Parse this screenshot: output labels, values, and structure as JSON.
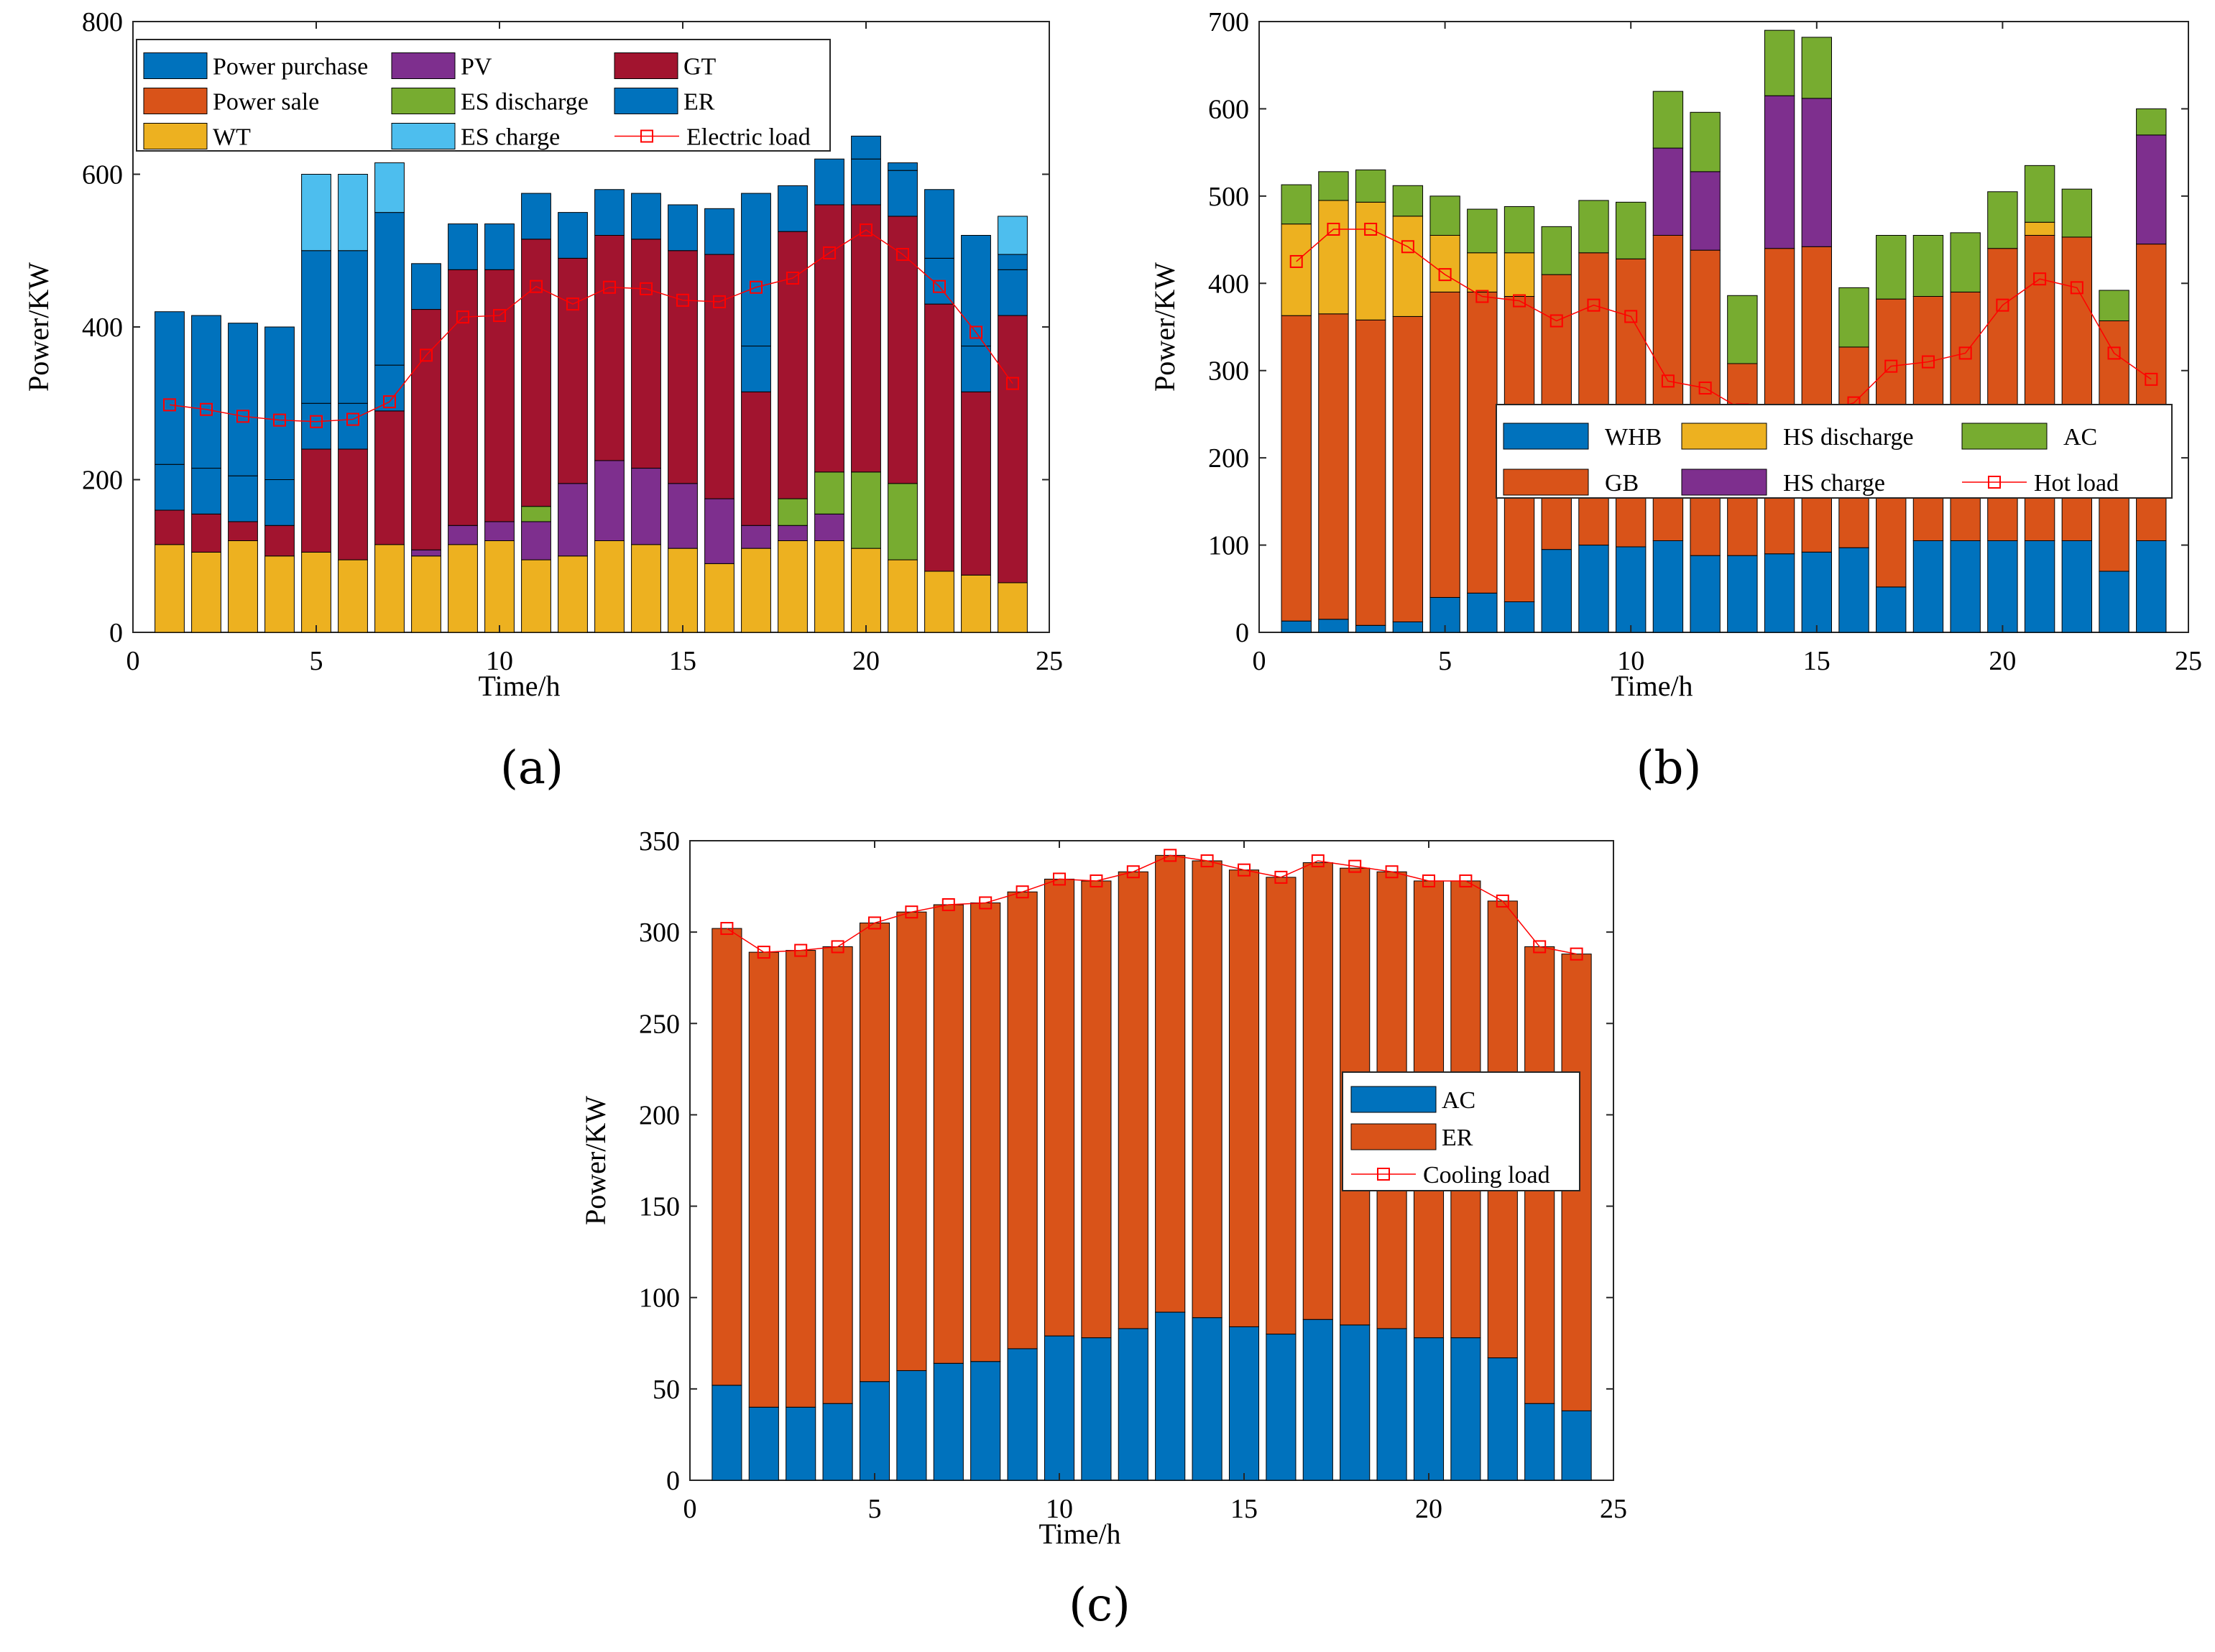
{
  "colors": {
    "blue": "#0072BD",
    "orange": "#D95319",
    "yellow": "#EDB120",
    "purple": "#7E2F8E",
    "green": "#77AC30",
    "lightblue": "#4DBEEE",
    "crimson": "#A2142F",
    "red": "#FF0000"
  },
  "chart_data": [
    {
      "type": "bar",
      "panel_label": "(a)",
      "xlabel": "Time/h",
      "ylabel": "Power/KW",
      "xlim": [
        0,
        25
      ],
      "ylim": [
        0,
        800
      ],
      "xticks": [
        0,
        5,
        10,
        15,
        20,
        25
      ],
      "yticks": [
        0,
        200,
        400,
        600,
        800
      ],
      "legend_position": "top",
      "x": [
        1,
        2,
        3,
        4,
        5,
        6,
        7,
        8,
        9,
        10,
        11,
        12,
        13,
        14,
        15,
        16,
        17,
        18,
        19,
        20,
        21,
        22,
        23,
        24
      ],
      "series": [
        {
          "name": "WT",
          "color": "yellow",
          "values": [
            115,
            105,
            120,
            100,
            105,
            95,
            115,
            100,
            115,
            120,
            95,
            100,
            120,
            115,
            110,
            90,
            110,
            120,
            120,
            110,
            95,
            80,
            75,
            65
          ]
        },
        {
          "name": "PV",
          "color": "purple",
          "values": [
            0,
            0,
            0,
            0,
            0,
            0,
            0,
            8,
            25,
            25,
            50,
            95,
            105,
            100,
            85,
            85,
            30,
            20,
            35,
            0,
            0,
            0,
            0,
            0
          ]
        },
        {
          "name": "ES discharge",
          "color": "green",
          "values": [
            0,
            0,
            0,
            0,
            0,
            0,
            0,
            0,
            0,
            0,
            20,
            0,
            0,
            0,
            0,
            0,
            0,
            35,
            55,
            100,
            100,
            0,
            0,
            0
          ]
        },
        {
          "name": "GT",
          "color": "crimson",
          "values": [
            45,
            50,
            25,
            40,
            135,
            145,
            175,
            315,
            335,
            330,
            350,
            295,
            295,
            300,
            305,
            320,
            175,
            350,
            350,
            350,
            350,
            350,
            240,
            350
          ]
        },
        {
          "name": "ER",
          "color": "blue",
          "values": [
            60,
            60,
            60,
            60,
            60,
            60,
            60,
            60,
            60,
            60,
            60,
            60,
            60,
            60,
            60,
            60,
            60,
            60,
            60,
            60,
            60,
            60,
            60,
            60
          ]
        },
        {
          "name": "Power purchase",
          "color": "blue",
          "values": [
            200,
            200,
            200,
            200,
            200,
            200,
            200,
            0,
            0,
            0,
            0,
            0,
            0,
            0,
            0,
            0,
            200,
            0,
            0,
            30,
            10,
            90,
            145,
            20
          ]
        },
        {
          "name": "ES charge",
          "color": "lightblue",
          "values": [
            0,
            0,
            0,
            0,
            100,
            100,
            65,
            0,
            0,
            0,
            0,
            0,
            0,
            0,
            0,
            0,
            0,
            0,
            0,
            0,
            0,
            0,
            0,
            50
          ]
        },
        {
          "name": "Power sale",
          "color": "orange",
          "values": [
            0,
            0,
            0,
            0,
            0,
            0,
            0,
            0,
            0,
            0,
            0,
            0,
            0,
            0,
            0,
            0,
            0,
            0,
            0,
            0,
            0,
            0,
            0,
            0
          ]
        },
        {
          "name": "Electric load",
          "color": "red",
          "line": true,
          "values": [
            298,
            292,
            283,
            278,
            276,
            279,
            302,
            363,
            413,
            415,
            453,
            430,
            452,
            450,
            435,
            433,
            452,
            464,
            497,
            527,
            495,
            453,
            393,
            326
          ]
        }
      ]
    },
    {
      "type": "bar",
      "panel_label": "(b)",
      "xlabel": "Time/h",
      "ylabel": "Power/KW",
      "xlim": [
        0,
        25
      ],
      "ylim": [
        0,
        700
      ],
      "xticks": [
        0,
        5,
        10,
        15,
        20,
        25
      ],
      "yticks": [
        0,
        100,
        200,
        300,
        400,
        500,
        600,
        700
      ],
      "legend_position": "center-right",
      "x": [
        1,
        2,
        3,
        4,
        5,
        6,
        7,
        8,
        9,
        10,
        11,
        12,
        13,
        14,
        15,
        16,
        17,
        18,
        19,
        20,
        21,
        22,
        23,
        24
      ],
      "series": [
        {
          "name": "WHB",
          "color": "blue",
          "values": [
            13,
            15,
            8,
            12,
            40,
            45,
            35,
            95,
            100,
            98,
            105,
            88,
            88,
            90,
            92,
            97,
            52,
            105,
            105,
            105,
            105,
            105,
            70,
            105
          ]
        },
        {
          "name": "GB",
          "color": "orange",
          "values": [
            350,
            350,
            350,
            350,
            350,
            345,
            350,
            315,
            335,
            330,
            350,
            350,
            220,
            350,
            350,
            230,
            330,
            280,
            285,
            335,
            350,
            348,
            287,
            340
          ]
        },
        {
          "name": "HS discharge",
          "color": "yellow",
          "values": [
            105,
            130,
            135,
            115,
            65,
            45,
            50,
            0,
            0,
            0,
            0,
            0,
            0,
            0,
            0,
            0,
            0,
            0,
            0,
            0,
            15,
            0,
            0,
            0
          ]
        },
        {
          "name": "HS charge",
          "color": "purple",
          "values": [
            0,
            0,
            0,
            0,
            0,
            0,
            0,
            0,
            0,
            0,
            100,
            90,
            0,
            175,
            170,
            0,
            0,
            0,
            0,
            0,
            0,
            0,
            0,
            125
          ]
        },
        {
          "name": "AC",
          "color": "green",
          "values": [
            45,
            33,
            37,
            35,
            45,
            50,
            53,
            55,
            60,
            65,
            65,
            68,
            78,
            75,
            70,
            68,
            73,
            70,
            68,
            65,
            65,
            55,
            35,
            30
          ]
        },
        {
          "name": "Hot load",
          "color": "red",
          "line": true,
          "values": [
            425,
            462,
            462,
            442,
            410,
            385,
            380,
            357,
            375,
            362,
            288,
            280,
            255,
            250,
            250,
            263,
            305,
            310,
            320,
            375,
            405,
            395,
            320,
            290
          ]
        }
      ]
    },
    {
      "type": "bar",
      "panel_label": "(c)",
      "xlabel": "Time/h",
      "ylabel": "Power/KW",
      "xlim": [
        0,
        25
      ],
      "ylim": [
        0,
        350
      ],
      "xticks": [
        0,
        5,
        10,
        15,
        20,
        25
      ],
      "yticks": [
        0,
        50,
        100,
        150,
        200,
        250,
        300,
        350
      ],
      "legend_position": "center-right",
      "x": [
        1,
        2,
        3,
        4,
        5,
        6,
        7,
        8,
        9,
        10,
        11,
        12,
        13,
        14,
        15,
        16,
        17,
        18,
        19,
        20,
        21,
        22,
        23,
        24
      ],
      "series": [
        {
          "name": "AC",
          "color": "blue",
          "values": [
            52,
            40,
            40,
            42,
            54,
            60,
            64,
            65,
            72,
            79,
            78,
            83,
            92,
            89,
            84,
            80,
            88,
            85,
            83,
            78,
            78,
            67,
            42,
            38
          ]
        },
        {
          "name": "ER",
          "color": "orange",
          "values": [
            250,
            249,
            250,
            250,
            251,
            251,
            251,
            251,
            250,
            250,
            250,
            250,
            250,
            250,
            250,
            250,
            250,
            250,
            250,
            250,
            250,
            250,
            250,
            250
          ]
        },
        {
          "name": "Cooling load",
          "color": "red",
          "line": true,
          "values": [
            302,
            289,
            290,
            292,
            305,
            311,
            315,
            316,
            322,
            329,
            328,
            333,
            342,
            339,
            334,
            330,
            339,
            336,
            333,
            328,
            328,
            317,
            292,
            288
          ]
        }
      ]
    }
  ]
}
